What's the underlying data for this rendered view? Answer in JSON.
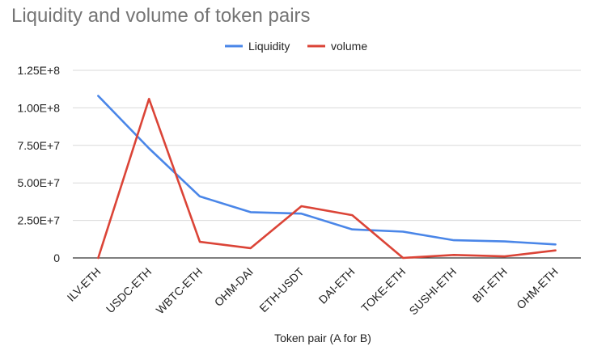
{
  "chart_data": {
    "type": "line",
    "title": "Liquidity and volume of token pairs",
    "xlabel": "Token pair (A for B)",
    "ylabel": "",
    "categories": [
      "ILV-ETH",
      "USDC-ETH",
      "WBTC-ETH",
      "OHM-DAI",
      "ETH-USDT",
      "DAI-ETH",
      "TOKE-ETH",
      "SUSHI-ETH",
      "BIT-ETH",
      "OHM-ETH"
    ],
    "series": [
      {
        "name": "Liquidity",
        "color": "#4a86e8",
        "values": [
          108000000,
          73000000,
          41000000,
          30500000,
          29500000,
          19000000,
          17500000,
          11800000,
          11000000,
          9000000
        ]
      },
      {
        "name": "volume",
        "color": "#db4437",
        "values": [
          0,
          106000000,
          10700000,
          6500000,
          34500000,
          28500000,
          0,
          2000000,
          1000000,
          5000000
        ]
      }
    ],
    "ylim": [
      0,
      125000000
    ],
    "yticks": [
      0,
      25000000,
      50000000,
      75000000,
      100000000,
      125000000
    ],
    "ytick_labels": [
      "0",
      "2.50E+7",
      "5.00E+7",
      "7.50E+7",
      "1.00E+8",
      "1.25E+8"
    ],
    "grid": true,
    "legend_position": "top-center"
  }
}
